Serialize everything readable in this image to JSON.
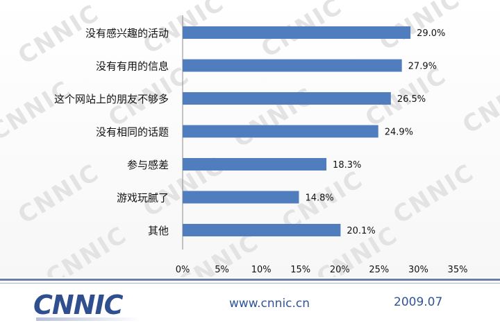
{
  "chart_data": {
    "type": "bar",
    "orientation": "horizontal",
    "categories": [
      "没有感兴趣的活动",
      "没有有用的信息",
      "这个网站上的朋友不够多",
      "没有相同的话题",
      "参与感差",
      "游戏玩腻了",
      "其他"
    ],
    "values": [
      29.0,
      27.9,
      26.5,
      24.9,
      18.3,
      14.8,
      20.1
    ],
    "data_labels": [
      "29.0%",
      "27.9%",
      "26.5%",
      "24.9%",
      "18.3%",
      "14.8%",
      "20.1%"
    ],
    "x_ticks": [
      0,
      5,
      10,
      15,
      20,
      25,
      30,
      35
    ],
    "x_tick_labels": [
      "0%",
      "5%",
      "10%",
      "15%",
      "20%",
      "25%",
      "30%",
      "35%"
    ],
    "xlim": [
      0,
      35
    ],
    "bar_color": "#4f7dbd",
    "grid": false,
    "legend": "none"
  },
  "watermark": {
    "text": "CNNIC"
  },
  "footer": {
    "logo": "CNNIC",
    "url": "www.cnnic.cn",
    "date": "2009.07"
  }
}
